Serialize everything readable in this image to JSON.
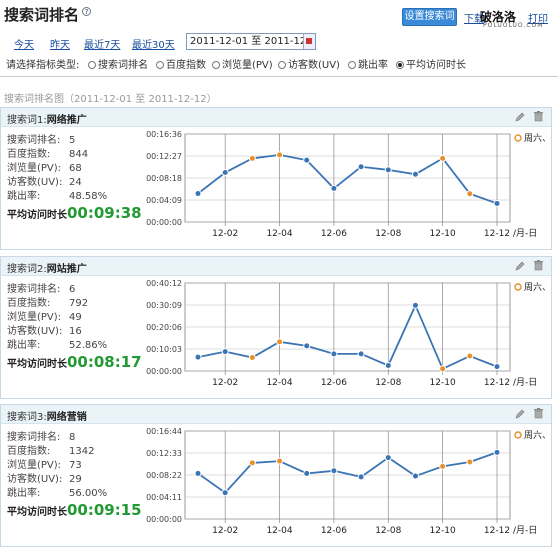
{
  "header": {
    "title": "搜索词排名",
    "help_glyph": "?",
    "settings_button": "设置搜索词",
    "download_link": "下载",
    "print_link": "打印",
    "logo_text": "破洛洛",
    "logo_sub": "POLUOLUO.COM"
  },
  "date_filter": {
    "links": [
      "今天",
      "昨天",
      "最近7天",
      "最近30天"
    ],
    "range_value": "2011-12-01 至 2011-12-"
  },
  "metric_selector": {
    "label": "请选择指标类型:",
    "options": [
      "搜索词排名",
      "百度指数",
      "浏览量(PV)",
      "访客数(UV)",
      "跳出率",
      "平均访问时长"
    ],
    "selected": "平均访问时长"
  },
  "section_title": "搜索词排名图（2011-12-01 至 2011-12-12）",
  "colors": {
    "line": "#3a74b5",
    "weekend_marker": "#e8902a",
    "accent_green": "#229933",
    "header_bg": "#eaf3f8"
  },
  "panels": [
    {
      "keyword_label": "搜索词1:",
      "keyword": "网络推广",
      "stats": [
        {
          "k": "搜索词排名:",
          "v": "5"
        },
        {
          "k": "百度指数:",
          "v": "844"
        },
        {
          "k": "浏览量(PV):",
          "v": "68"
        },
        {
          "k": "访客数(UV):",
          "v": "24"
        },
        {
          "k": "跳出率:",
          "v": "48.58%"
        }
      ],
      "avg_label": "平均访问时长",
      "avg_value": "00:09:38",
      "legend": "周六、"
    },
    {
      "keyword_label": "搜索词2:",
      "keyword": "网站推广",
      "stats": [
        {
          "k": "搜索词排名:",
          "v": "6"
        },
        {
          "k": "百度指数:",
          "v": "792"
        },
        {
          "k": "浏览量(PV):",
          "v": "49"
        },
        {
          "k": "访客数(UV):",
          "v": "16"
        },
        {
          "k": "跳出率:",
          "v": "52.86%"
        }
      ],
      "avg_label": "平均访问时长",
      "avg_value": "00:08:17",
      "legend": "周六、"
    },
    {
      "keyword_label": "搜索词3:",
      "keyword": "网络营销",
      "stats": [
        {
          "k": "搜索词排名:",
          "v": "8"
        },
        {
          "k": "百度指数:",
          "v": "1342"
        },
        {
          "k": "浏览量(PV):",
          "v": "73"
        },
        {
          "k": "访客数(UV):",
          "v": "29"
        },
        {
          "k": "跳出率:",
          "v": "56.00%"
        }
      ],
      "avg_label": "平均访问时长",
      "avg_value": "00:09:15",
      "legend": "周六、"
    }
  ],
  "chart_data": [
    {
      "type": "line",
      "x": [
        "12-01",
        "12-02",
        "12-03",
        "12-04",
        "12-05",
        "12-06",
        "12-07",
        "12-08",
        "12-09",
        "12-10",
        "12-11",
        "12-12"
      ],
      "x_tick_labels": [
        "12-02",
        "12-04",
        "12-06",
        "12-08",
        "12-10",
        "12-12"
      ],
      "x_unit": "/月-日",
      "y_tick_labels": [
        "00:00:00",
        "00:04:09",
        "00:08:18",
        "00:12:27",
        "00:16:36"
      ],
      "ylim": [
        0,
        996
      ],
      "values": [
        322,
        560,
        720,
        760,
        700,
        380,
        625,
        590,
        540,
        720,
        320,
        210
      ],
      "weekend_points": [
        "12-03",
        "12-04",
        "12-10",
        "12-11"
      ],
      "legend": "周六、"
    },
    {
      "type": "line",
      "x": [
        "12-01",
        "12-02",
        "12-03",
        "12-04",
        "12-05",
        "12-06",
        "12-07",
        "12-08",
        "12-09",
        "12-10",
        "12-11",
        "12-12"
      ],
      "x_tick_labels": [
        "12-02",
        "12-04",
        "12-06",
        "12-08",
        "12-10",
        "12-12"
      ],
      "x_unit": "/月-日",
      "y_tick_labels": [
        "00:00:00",
        "00:10:03",
        "00:20:06",
        "00:30:09",
        "00:40:12"
      ],
      "ylim": [
        0,
        2412
      ],
      "values": [
        380,
        530,
        370,
        800,
        690,
        470,
        470,
        150,
        1800,
        60,
        410,
        120
      ],
      "weekend_points": [
        "12-03",
        "12-04",
        "12-10",
        "12-11"
      ],
      "legend": "周六、"
    },
    {
      "type": "line",
      "x": [
        "12-01",
        "12-02",
        "12-03",
        "12-04",
        "12-05",
        "12-06",
        "12-07",
        "12-08",
        "12-09",
        "12-10",
        "12-11",
        "12-12"
      ],
      "x_tick_labels": [
        "12-02",
        "12-04",
        "12-06",
        "12-08",
        "12-10",
        "12-12"
      ],
      "x_unit": "/月-日",
      "y_tick_labels": [
        "00:00:00",
        "00:04:11",
        "00:08:22",
        "00:12:33",
        "00:16:44"
      ],
      "ylim": [
        0,
        1004
      ],
      "values": [
        520,
        300,
        640,
        660,
        520,
        550,
        480,
        700,
        490,
        600,
        650,
        760
      ],
      "weekend_points": [
        "12-03",
        "12-04",
        "12-10",
        "12-11"
      ],
      "legend": "周六、"
    }
  ]
}
